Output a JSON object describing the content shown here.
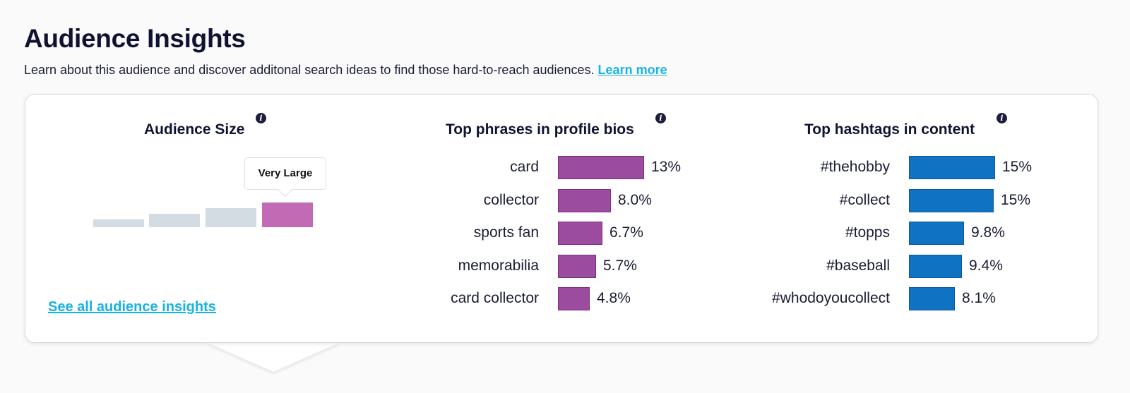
{
  "header": {
    "title": "Audience Insights",
    "description": "Learn about this audience and discover additonal search ideas to find those hard-to-reach audiences.",
    "learn_more_label": "Learn more"
  },
  "audience_size": {
    "title": "Audience Size",
    "info_icon": "info-icon",
    "levels": 4,
    "active_level": 4,
    "active_label": "Very Large",
    "see_all_label": "See all audience insights",
    "colors": {
      "inactive": "#d3dbe3",
      "active": "#c36ab4"
    }
  },
  "top_phrases": {
    "title": "Top phrases in profile bios",
    "info_icon": "info-icon",
    "color": "#9c4c9e",
    "items": [
      {
        "label": "card",
        "value": "13%",
        "pct": 13
      },
      {
        "label": "collector",
        "value": "8.0%",
        "pct": 8.0
      },
      {
        "label": "sports fan",
        "value": "6.7%",
        "pct": 6.7
      },
      {
        "label": "memorabilia",
        "value": "5.7%",
        "pct": 5.7
      },
      {
        "label": "card collector",
        "value": "4.8%",
        "pct": 4.8
      }
    ]
  },
  "top_hashtags": {
    "title": "Top hashtags in content",
    "info_icon": "info-icon",
    "color": "#0f72c2",
    "items": [
      {
        "label": "#thehobby",
        "value": "15%",
        "pct": 15.2
      },
      {
        "label": "#collect",
        "value": "15%",
        "pct": 15.0
      },
      {
        "label": "#topps",
        "value": "9.8%",
        "pct": 9.8
      },
      {
        "label": "#baseball",
        "value": "9.4%",
        "pct": 9.4
      },
      {
        "label": "#whodoyoucollect",
        "value": "8.1%",
        "pct": 8.1
      }
    ]
  }
}
